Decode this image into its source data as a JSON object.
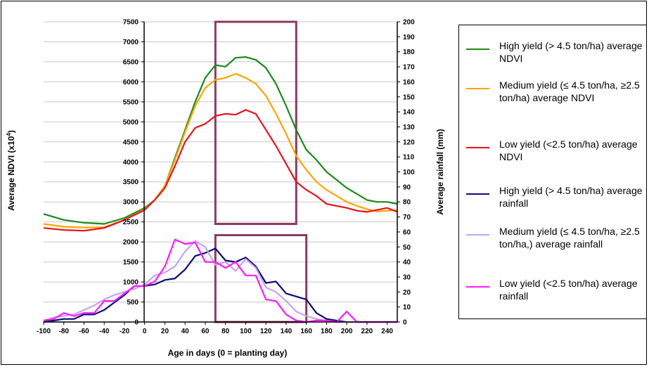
{
  "chart_data": {
    "type": "line",
    "xlabel": "Age in days (0 = planting day)",
    "ylabel_left": "Average NDVI (x10",
    "ylabel_left_sup": "4",
    "ylabel_left_close": ")",
    "ylabel_right": "Average rainfall (mm)",
    "xlim": [
      -100,
      250
    ],
    "ylim_left": [
      0,
      7500
    ],
    "ylim_right": [
      0,
      200
    ],
    "x_ticks": [
      -100,
      -80,
      -60,
      -40,
      -20,
      0,
      20,
      40,
      60,
      80,
      100,
      120,
      140,
      160,
      180,
      200,
      220,
      240
    ],
    "y_left_ticks": [
      0,
      500,
      1000,
      1500,
      2000,
      2500,
      3000,
      3500,
      4000,
      4500,
      5000,
      5500,
      6000,
      6500,
      7000,
      7500
    ],
    "y_right_ticks": [
      0,
      10,
      20,
      30,
      40,
      50,
      60,
      70,
      80,
      90,
      100,
      110,
      120,
      130,
      140,
      150,
      160,
      170,
      180,
      190,
      200
    ],
    "grid": "horizontal",
    "legend_position": "right",
    "highlight_boxes": [
      {
        "axis": "left",
        "x": [
          70,
          150
        ],
        "y": [
          2450,
          7500
        ]
      },
      {
        "axis": "left",
        "x": [
          70,
          160
        ],
        "y": [
          0,
          2170
        ]
      }
    ],
    "series": [
      {
        "name": "High yield (> 4.5 ton/ha) average NDVI",
        "axis": "left",
        "color": "#1a8a1a",
        "x": [
          -100,
          -80,
          -60,
          -40,
          -20,
          0,
          10,
          20,
          30,
          40,
          50,
          60,
          70,
          80,
          90,
          100,
          110,
          120,
          130,
          140,
          150,
          160,
          170,
          180,
          190,
          200,
          210,
          220,
          230,
          240,
          250
        ],
        "y": [
          2700,
          2550,
          2480,
          2450,
          2600,
          2850,
          3050,
          3400,
          4100,
          4800,
          5500,
          6100,
          6420,
          6380,
          6600,
          6620,
          6550,
          6350,
          5950,
          5400,
          4800,
          4300,
          4050,
          3750,
          3550,
          3350,
          3200,
          3050,
          3000,
          3000,
          2950
        ]
      },
      {
        "name": "Medium yield (≤ 4.5 ton/ha, ≥2.5 ton/ha) average NDVI",
        "axis": "left",
        "color": "#ffa500",
        "x": [
          -100,
          -80,
          -60,
          -40,
          -20,
          0,
          10,
          20,
          30,
          40,
          50,
          60,
          70,
          80,
          90,
          100,
          110,
          120,
          130,
          140,
          150,
          160,
          170,
          180,
          190,
          200,
          210,
          220,
          230,
          240,
          250
        ],
        "y": [
          2450,
          2380,
          2360,
          2370,
          2550,
          2820,
          3050,
          3400,
          4050,
          4750,
          5400,
          5850,
          6050,
          6100,
          6200,
          6100,
          5950,
          5650,
          5200,
          4700,
          4150,
          3800,
          3500,
          3300,
          3150,
          3000,
          2900,
          2820,
          2760,
          2780,
          2800
        ]
      },
      {
        "name": "Low yield (<2.5 ton/ha) average NDVI",
        "axis": "left",
        "color": "#e8141a",
        "x": [
          -100,
          -80,
          -60,
          -40,
          -20,
          0,
          10,
          20,
          30,
          40,
          50,
          60,
          70,
          80,
          90,
          100,
          110,
          120,
          130,
          140,
          150,
          160,
          170,
          180,
          190,
          200,
          210,
          220,
          230,
          240,
          250
        ],
        "y": [
          2350,
          2300,
          2280,
          2350,
          2550,
          2800,
          3050,
          3350,
          3900,
          4500,
          4850,
          4950,
          5150,
          5200,
          5180,
          5300,
          5200,
          4800,
          4400,
          3950,
          3500,
          3300,
          3150,
          2950,
          2900,
          2850,
          2780,
          2750,
          2800,
          2850,
          2750
        ]
      },
      {
        "name": "High yield (> 4.5 ton/ha) average rainfall",
        "axis": "right",
        "color": "#0a0a78",
        "x": [
          -100,
          -90,
          -80,
          -70,
          -60,
          -50,
          -40,
          -30,
          -20,
          -10,
          0,
          10,
          20,
          30,
          40,
          50,
          60,
          70,
          80,
          90,
          100,
          110,
          120,
          130,
          140,
          150,
          160,
          170,
          180,
          190,
          200,
          210,
          220,
          230,
          240,
          250
        ],
        "y": [
          0,
          1,
          2,
          2,
          5,
          5,
          8,
          13,
          18,
          24,
          24,
          25,
          28,
          29,
          35,
          44,
          46,
          49,
          41,
          40,
          43,
          37,
          26,
          27,
          19,
          17,
          15,
          6,
          2,
          1,
          0,
          0,
          0,
          0,
          0,
          0
        ]
      },
      {
        "name": "Medium yield (≤ 4.5 ton/ha, ≥2.5 ton/ha,) average rainfall",
        "axis": "right",
        "color": "#c8a2f5",
        "x": [
          -100,
          -90,
          -80,
          -70,
          -60,
          -50,
          -40,
          -30,
          -20,
          -10,
          0,
          10,
          20,
          30,
          40,
          50,
          60,
          70,
          80,
          90,
          100,
          110,
          120,
          130,
          140,
          150,
          160,
          170,
          180,
          190,
          200,
          210,
          220,
          230,
          240,
          250
        ],
        "y": [
          1,
          3,
          4,
          5,
          8,
          11,
          15,
          18,
          20,
          22,
          25,
          31,
          33,
          37,
          47,
          54,
          50,
          38,
          40,
          34,
          42,
          36,
          23,
          20,
          14,
          7,
          4,
          2,
          1,
          0,
          0,
          0,
          0,
          0,
          0,
          0
        ]
      },
      {
        "name": "Low yield (<2.5 ton/ha) average rainfall",
        "axis": "right",
        "color": "#ff1aff",
        "x": [
          -100,
          -90,
          -80,
          -70,
          -60,
          -50,
          -40,
          -30,
          -20,
          -10,
          0,
          10,
          20,
          30,
          40,
          50,
          60,
          70,
          80,
          90,
          100,
          110,
          120,
          130,
          140,
          150,
          160,
          170,
          180,
          190,
          200,
          210,
          220,
          230,
          240,
          250
        ],
        "y": [
          1,
          2,
          6,
          4,
          6,
          6,
          14,
          14,
          19,
          24,
          24,
          27,
          37,
          55,
          52,
          53,
          40,
          40,
          36,
          40,
          31,
          31,
          15,
          14,
          5,
          1,
          0,
          1,
          1,
          0,
          7,
          0,
          0,
          0,
          0,
          0
        ]
      }
    ]
  },
  "legend": {
    "items": [
      {
        "label": "High yield (> 4.5 ton/ha) average NDVI",
        "color": "#1a8a1a"
      },
      {
        "label": "Medium yield (≤ 4.5 ton/ha, ≥2.5 ton/ha) average NDVI",
        "color": "#ffa500"
      },
      {
        "label": "Low yield (<2.5 ton/ha) average NDVI",
        "color": "#e8141a"
      },
      {
        "label": "High yield (> 4.5 ton/ha) average rainfall",
        "color": "#0a0a78"
      },
      {
        "label": "Medium yield (≤ 4.5 ton/ha, ≥2.5 ton/ha,) average rainfall",
        "color": "#c8a2f5"
      },
      {
        "label": "Low yield (<2.5 ton/ha) average rainfall",
        "color": "#ff1aff"
      }
    ]
  },
  "colors": {
    "grid": "#c8c8c8",
    "highlight_box": "#8b3a62",
    "axis": "#000000"
  }
}
